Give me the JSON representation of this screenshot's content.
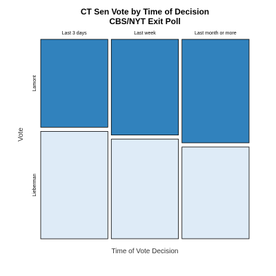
{
  "chart_data": {
    "type": "mosaic",
    "title": "CT Sen Vote by Time of Decision",
    "subtitle": "CBS/NYT Exit Poll",
    "xlabel": "Time of Vote Decision",
    "ylabel": "Vote",
    "categories": [
      "Last 3 days",
      "Last week",
      "Last month or more"
    ],
    "column_weights": [
      1,
      1,
      1
    ],
    "series": [
      {
        "name": "Lamont",
        "color": "#3182bd",
        "values": [
          0.45,
          0.49,
          0.53
        ]
      },
      {
        "name": "Lieberman",
        "color": "#deebf7",
        "values": [
          0.55,
          0.51,
          0.47
        ]
      }
    ],
    "grid": false,
    "legend": "none"
  }
}
